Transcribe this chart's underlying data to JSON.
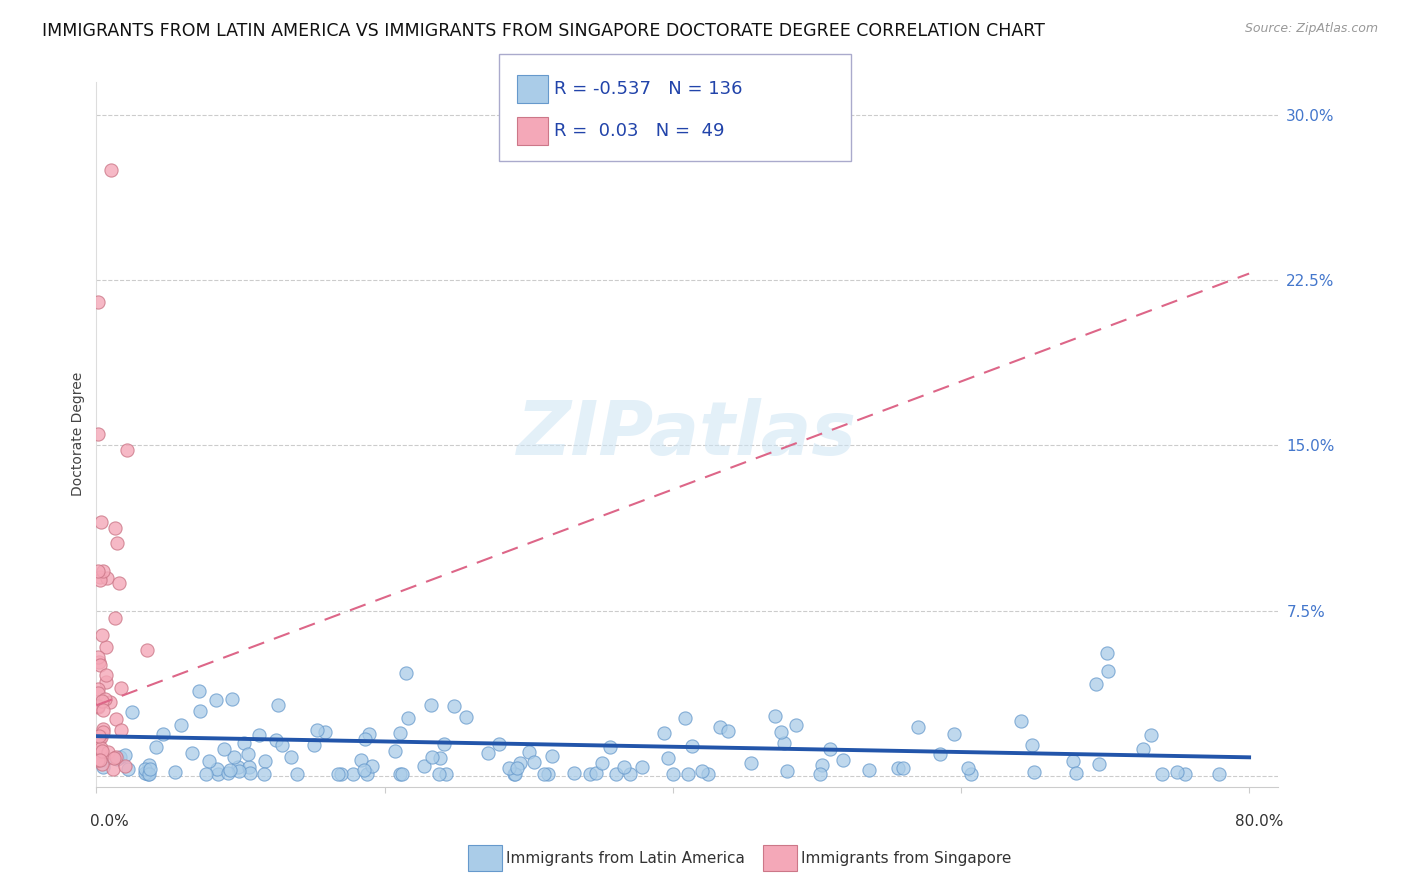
{
  "title": "IMMIGRANTS FROM LATIN AMERICA VS IMMIGRANTS FROM SINGAPORE DOCTORATE DEGREE CORRELATION CHART",
  "source": "Source: ZipAtlas.com",
  "ylabel": "Doctorate Degree",
  "yticks": [
    0.0,
    0.075,
    0.15,
    0.225,
    0.3
  ],
  "ytick_labels": [
    "",
    "7.5%",
    "15.0%",
    "22.5%",
    "30.0%"
  ],
  "xlim": [
    0.0,
    0.82
  ],
  "ylim": [
    -0.005,
    0.315
  ],
  "series1_name": "Immigrants from Latin America",
  "series1_color": "#aacce8",
  "series1_edge": "#6699cc",
  "series1_R": -0.537,
  "series1_N": 136,
  "series2_name": "Immigrants from Singapore",
  "series2_color": "#f4a8b8",
  "series2_edge": "#cc7788",
  "series2_R": 0.03,
  "series2_N": 49,
  "trend1_color": "#2255aa",
  "trend2_color": "#dd6688",
  "trend1_slope": -0.012,
  "trend1_intercept": 0.018,
  "trend2_slope": 0.245,
  "trend2_intercept": 0.032,
  "watermark": "ZIPatlas",
  "background_color": "#ffffff",
  "title_fontsize": 12.5,
  "axis_label_fontsize": 10,
  "tick_fontsize": 11,
  "legend_fontsize": 13,
  "grid_color": "#cccccc"
}
